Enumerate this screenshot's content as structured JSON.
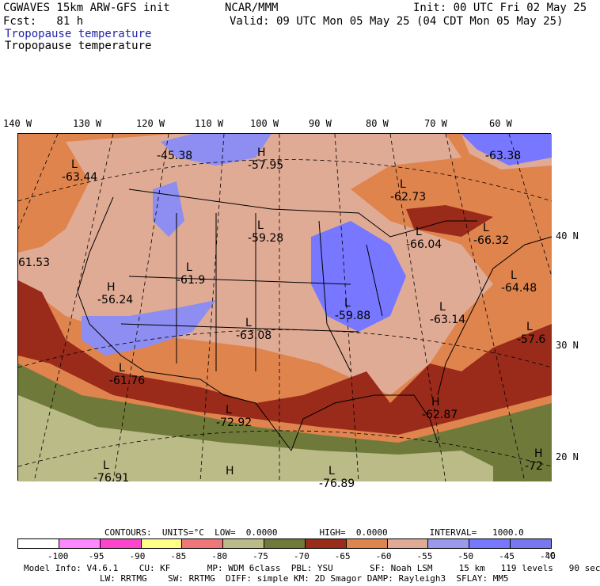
{
  "header": {
    "model": "CGWAVES 15km ARW-GFS init",
    "org": "NCAR/MMM",
    "init": "Init: 00 UTC Fri 02 May 25",
    "fcst": "Fcst:   81 h",
    "valid": "Valid: 09 UTC Mon 05 May 25 (04 CDT Mon 05 May 25)",
    "field_title_1": "Tropopause temperature",
    "field_title_2": "Tropopause temperature",
    "field_title_1_color": "#2222aa"
  },
  "longitudes": [
    "140 W",
    "130 W",
    "120 W",
    "110 W",
    "100 W",
    "90 W",
    "80 W",
    "70 W",
    "60 W"
  ],
  "latitudes": [
    "40 N",
    "30 N",
    "20 N"
  ],
  "map": {
    "centers": [
      {
        "type": "L",
        "value": "-63.44"
      },
      {
        "type": "",
        "value": "-45.38"
      },
      {
        "type": "H",
        "value": "-57.95"
      },
      {
        "type": "L",
        "value": "-62.73"
      },
      {
        "type": "",
        "value": "-63.38"
      },
      {
        "type": "L",
        "value": "-59.28"
      },
      {
        "type": "L",
        "value": "-66.04"
      },
      {
        "type": "L",
        "value": "-66.32"
      },
      {
        "type": "",
        "value": "61.53"
      },
      {
        "type": "L",
        "value": "-61.9"
      },
      {
        "type": "H",
        "value": "-56.24"
      },
      {
        "type": "L",
        "value": "-64.48"
      },
      {
        "type": "L",
        "value": "-59.88"
      },
      {
        "type": "L",
        "value": "-63.14"
      },
      {
        "type": "L",
        "value": "-63.08"
      },
      {
        "type": "L",
        "value": "-57.6"
      },
      {
        "type": "L",
        "value": "-61.76"
      },
      {
        "type": "L",
        "value": "-72.92"
      },
      {
        "type": "H",
        "value": "-62.87"
      },
      {
        "type": "H",
        "value": "-72"
      },
      {
        "type": "L",
        "value": "-76.91"
      },
      {
        "type": "H",
        "value": ""
      },
      {
        "type": "L",
        "value": "-76.89"
      }
    ]
  },
  "contours": {
    "line": "CONTOURS:  UNITS=°C  LOW=  0.0000        HIGH=  0.0000        INTERVAL=   1000.0"
  },
  "colorbar": {
    "colors": [
      "#ffffff",
      "#ff88ff",
      "#ff44cc",
      "#ffff88",
      "#ee7777",
      "#bbbb88",
      "#6f7a3a",
      "#9a2a1a",
      "#e0844e",
      "#e0ab95",
      "#9999ee",
      "#7777ff",
      "#7777ee"
    ],
    "labels": [
      "-100",
      "-95",
      "-90",
      "-85",
      "-80",
      "-75",
      "-70",
      "-65",
      "-60",
      "-55",
      "-50",
      "-45",
      "-40"
    ],
    "unit": "°C"
  },
  "footer": {
    "line1": "Model Info: V4.6.1    CU: KF       MP: WDM 6class  PBL: YSU       SF: Noah LSM     15 km   119 levels   90 sec",
    "line2": "LW: RRTMG    SW: RRTMG  DIFF: simple KM: 2D Smagor DAMP: Rayleigh3  SFLAY: MM5"
  }
}
